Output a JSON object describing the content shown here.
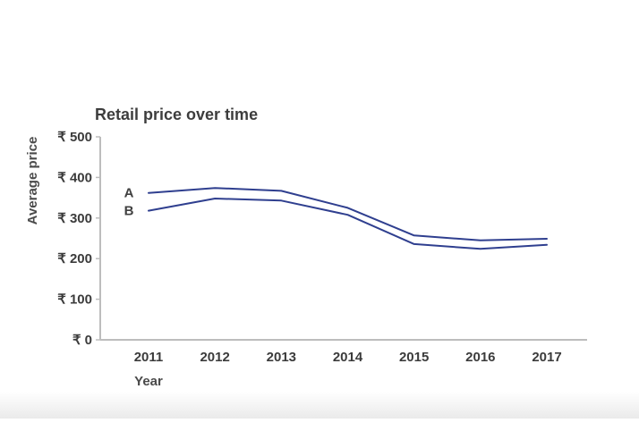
{
  "chart_data": {
    "type": "line",
    "title": "Retail price over time",
    "xlabel": "Year",
    "ylabel": "Average price",
    "x": [
      "2011",
      "2012",
      "2013",
      "2014",
      "2015",
      "2016",
      "2017"
    ],
    "y_ticks": [
      "₹ 0",
      "₹ 100",
      "₹ 200",
      "₹ 300",
      "₹ 400",
      "₹ 500"
    ],
    "ylim": [
      0,
      500
    ],
    "grid": false,
    "legend": "labels at line start (left)",
    "line_color": "#2f3f8f",
    "series": [
      {
        "name": "A",
        "values": [
          362,
          374,
          367,
          325,
          257,
          245,
          249
        ]
      },
      {
        "name": "B",
        "values": [
          318,
          348,
          343,
          308,
          236,
          224,
          234
        ]
      }
    ]
  }
}
